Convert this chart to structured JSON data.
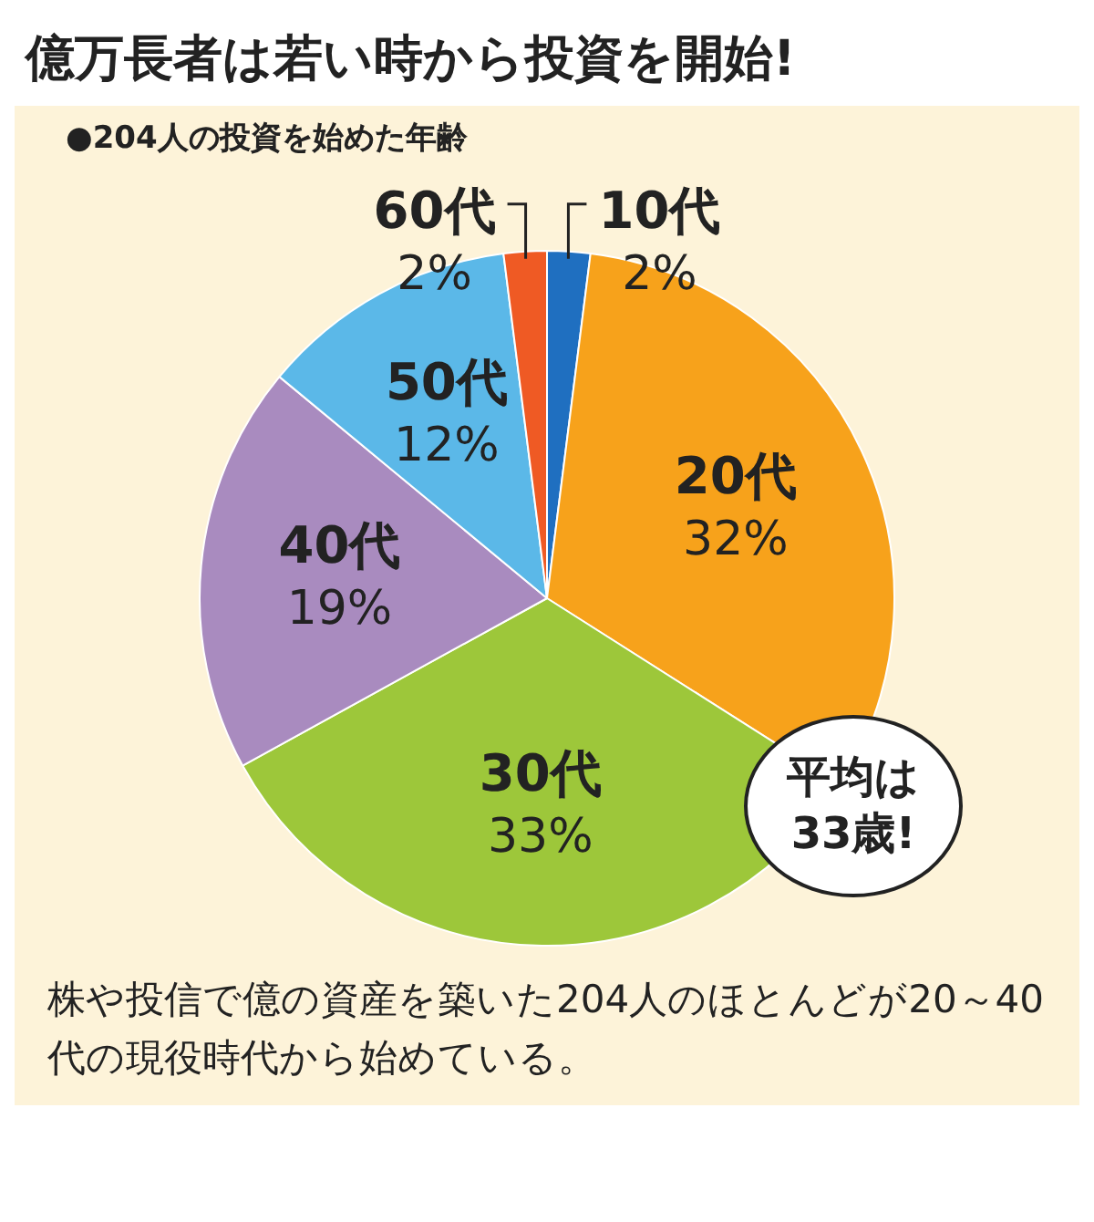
{
  "chart_data": {
    "type": "pie",
    "title": "億万長者は若い時から投資を開始!",
    "subtitle": "●204人の投資を始めた年齢",
    "categories": [
      "10代",
      "20代",
      "30代",
      "40代",
      "50代",
      "60代"
    ],
    "values": [
      2,
      32,
      33,
      19,
      12,
      2
    ],
    "colors": [
      "#1f6fc0",
      "#f7a21b",
      "#9dc73a",
      "#a98bbf",
      "#5bb8e8",
      "#ef5a24"
    ],
    "value_labels": [
      "2%",
      "32%",
      "33%",
      "19%",
      "12%",
      "2%"
    ],
    "legend": false,
    "annotations": [
      "平均は33歳!",
      "株や投信で億の資産を築いた204人のほとんどが20～40代の現役時代から始めている。"
    ]
  }
}
